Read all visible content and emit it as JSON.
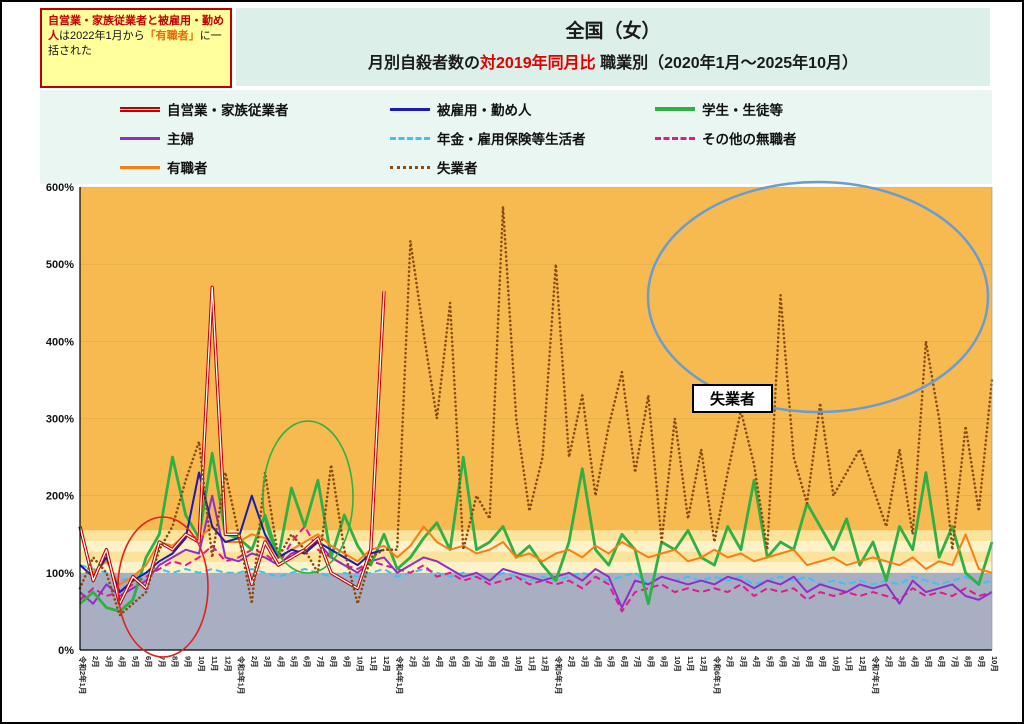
{
  "note": {
    "seg_red": "自営業・家族従業者と被雇用・勤め人",
    "seg_black1": "は2022年1月から",
    "seg_orange": "「有職者」",
    "seg_black2": "に一括された"
  },
  "header": {
    "title": "全国（女）",
    "subtitle_pre": "月別自殺者数の",
    "subtitle_red": "対2019年同月比",
    "subtitle_post": " 職業別（2020年1月～2025年10月）"
  },
  "legend": {
    "items": [
      {
        "key": "jiei",
        "label": "自営業・家族従業者"
      },
      {
        "key": "koyou",
        "label": "被雇用・勤め人"
      },
      {
        "key": "gakusei",
        "label": "学生・生徒等"
      },
      {
        "key": "shufu",
        "label": "主婦"
      },
      {
        "key": "nenkin",
        "label": "年金・雇用保険等生活者"
      },
      {
        "key": "sonota",
        "label": "その他の無職者"
      },
      {
        "key": "yuushoku",
        "label": "有職者"
      },
      {
        "key": "shitsugyou",
        "label": "失業者"
      }
    ]
  },
  "chart_data": {
    "type": "line",
    "title": "月別自殺者数の対2019年同月比 職業別（2020年1月～2025年10月）",
    "xlabel": "",
    "ylabel": "",
    "ylim": [
      0,
      600
    ],
    "yticks": [
      "0%",
      "100%",
      "200%",
      "300%",
      "400%",
      "500%",
      "600%"
    ],
    "grid": false,
    "legend_position": "top",
    "background_bands": {
      "above_color": "#F7BA50",
      "stripe_a": "#FBE39B",
      "stripe_b": "#FDF2C8",
      "stripe_top_value": 155,
      "stripe_bottom_value": 100,
      "below_color": "#A9AFC2"
    },
    "annotations": {
      "unemployed_label": "失業者"
    },
    "categories": [
      "令和2年1月",
      "2月",
      "3月",
      "4月",
      "5月",
      "6月",
      "7月",
      "8月",
      "9月",
      "10月",
      "11月",
      "12月",
      "令和3年1月",
      "2月",
      "3月",
      "4月",
      "5月",
      "6月",
      "7月",
      "8月",
      "9月",
      "10月",
      "11月",
      "12月",
      "令和4年1月",
      "2月",
      "3月",
      "4月",
      "5月",
      "6月",
      "7月",
      "8月",
      "9月",
      "10月",
      "11月",
      "12月",
      "令和5年1月",
      "2月",
      "3月",
      "4月",
      "5月",
      "6月",
      "7月",
      "8月",
      "9月",
      "10月",
      "11月",
      "12月",
      "令和6年1月",
      "2月",
      "3月",
      "4月",
      "5月",
      "6月",
      "7月",
      "8月",
      "9月",
      "10月",
      "11月",
      "12月",
      "令和7年1月",
      "2月",
      "3月",
      "4月",
      "5月",
      "6月",
      "7月",
      "8月",
      "9月",
      "10月"
    ],
    "series": [
      {
        "key": "jiei",
        "name": "自営業・家族従業者",
        "color": "#C00000",
        "style": "double",
        "values": [
          160,
          90,
          130,
          60,
          95,
          80,
          140,
          130,
          150,
          140,
          470,
          150,
          150,
          85,
          140,
          110,
          120,
          130,
          145,
          100,
          90,
          80,
          130,
          465
        ]
      },
      {
        "key": "koyou",
        "name": "被雇用・勤め人",
        "color": "#1A1AB4",
        "style": "solid",
        "values": [
          110,
          95,
          120,
          75,
          90,
          100,
          115,
          125,
          145,
          230,
          160,
          140,
          145,
          200,
          150,
          120,
          130,
          125,
          140,
          130,
          120,
          110,
          125,
          130
        ]
      },
      {
        "key": "gakusei",
        "name": "学生・生徒等",
        "color": "#2EB043",
        "style": "solid-thick",
        "values": [
          60,
          75,
          55,
          50,
          65,
          120,
          150,
          250,
          175,
          145,
          255,
          150,
          145,
          130,
          175,
          120,
          210,
          160,
          220,
          120,
          175,
          135,
          110,
          150,
          105,
          120,
          145,
          165,
          130,
          250,
          130,
          140,
          160,
          120,
          135,
          110,
          90,
          140,
          235,
          130,
          110,
          150,
          130,
          60,
          140,
          130,
          155,
          120,
          110,
          160,
          130,
          220,
          120,
          140,
          130,
          190,
          160,
          130,
          170,
          110,
          140,
          90,
          160,
          130,
          230,
          120,
          160,
          100,
          85,
          140
        ]
      },
      {
        "key": "shufu",
        "name": "主婦",
        "color": "#8E30C8",
        "style": "solid",
        "values": [
          75,
          60,
          85,
          70,
          80,
          90,
          110,
          120,
          130,
          125,
          200,
          120,
          115,
          125,
          120,
          110,
          125,
          130,
          140,
          120,
          110,
          100,
          115,
          120,
          100,
          110,
          120,
          115,
          105,
          95,
          100,
          90,
          105,
          100,
          95,
          90,
          95,
          100,
          90,
          105,
          95,
          55,
          90,
          85,
          95,
          90,
          85,
          90,
          85,
          95,
          90,
          80,
          90,
          85,
          95,
          75,
          85,
          80,
          75,
          85,
          80,
          85,
          60,
          90,
          75,
          80,
          85,
          70,
          65,
          75
        ]
      },
      {
        "key": "nenkin",
        "name": "年金・雇用保険等生活者",
        "color": "#3EC1F3",
        "style": "dashed",
        "values": [
          110,
          105,
          100,
          90,
          95,
          100,
          105,
          100,
          105,
          100,
          105,
          100,
          100,
          105,
          100,
          95,
          100,
          105,
          100,
          95,
          100,
          95,
          100,
          105,
          95,
          100,
          105,
          100,
          95,
          100,
          95,
          90,
          100,
          95,
          90,
          95,
          90,
          95,
          100,
          95,
          90,
          95,
          100,
          85,
          95,
          90,
          95,
          90,
          95,
          90,
          95,
          85,
          90,
          95,
          90,
          95,
          85,
          90,
          85,
          90,
          85,
          90,
          85,
          95,
          90,
          85,
          90,
          95,
          85,
          90
        ]
      },
      {
        "key": "sonota",
        "name": "その他の無職者",
        "color": "#E3188C",
        "style": "dashed",
        "values": [
          65,
          80,
          70,
          75,
          85,
          95,
          105,
          115,
          110,
          120,
          135,
          115,
          120,
          130,
          125,
          110,
          140,
          160,
          130,
          120,
          110,
          105,
          115,
          110,
          105,
          100,
          110,
          95,
          100,
          90,
          95,
          85,
          90,
          95,
          85,
          90,
          85,
          90,
          80,
          95,
          85,
          50,
          75,
          80,
          85,
          75,
          80,
          75,
          80,
          75,
          85,
          70,
          80,
          75,
          80,
          65,
          75,
          70,
          75,
          70,
          75,
          70,
          65,
          80,
          70,
          75,
          70,
          80,
          70,
          75
        ]
      },
      {
        "key": "yuushoku",
        "name": "有職者",
        "color": "#F97E16",
        "style": "solid",
        "values": [
          155,
          100,
          115,
          85,
          95,
          110,
          140,
          135,
          150,
          145,
          160,
          140,
          140,
          150,
          145,
          120,
          130,
          140,
          150,
          135,
          125,
          115,
          130,
          135,
          120,
          135,
          160,
          140,
          130,
          135,
          125,
          130,
          140,
          120,
          125,
          115,
          125,
          130,
          120,
          135,
          125,
          140,
          130,
          120,
          125,
          130,
          115,
          120,
          130,
          120,
          125,
          115,
          120,
          125,
          130,
          110,
          115,
          120,
          110,
          115,
          120,
          115,
          110,
          120,
          105,
          115,
          110,
          150,
          105,
          100
        ]
      },
      {
        "key": "shitsugyou",
        "name": "失業者",
        "color": "#8A4A10",
        "style": "dotted",
        "values": [
          80,
          120,
          100,
          45,
          60,
          75,
          130,
          160,
          220,
          270,
          120,
          230,
          150,
          60,
          230,
          120,
          150,
          130,
          100,
          240,
          130,
          60,
          120,
          130,
          130,
          530,
          410,
          300,
          450,
          130,
          200,
          170,
          575,
          300,
          180,
          250,
          500,
          250,
          330,
          200,
          290,
          360,
          230,
          330,
          140,
          300,
          170,
          260,
          140,
          230,
          310,
          240,
          130,
          460,
          250,
          190,
          320,
          200,
          230,
          260,
          210,
          160,
          260,
          150,
          400,
          300,
          130,
          290,
          180,
          350
        ]
      }
    ]
  }
}
